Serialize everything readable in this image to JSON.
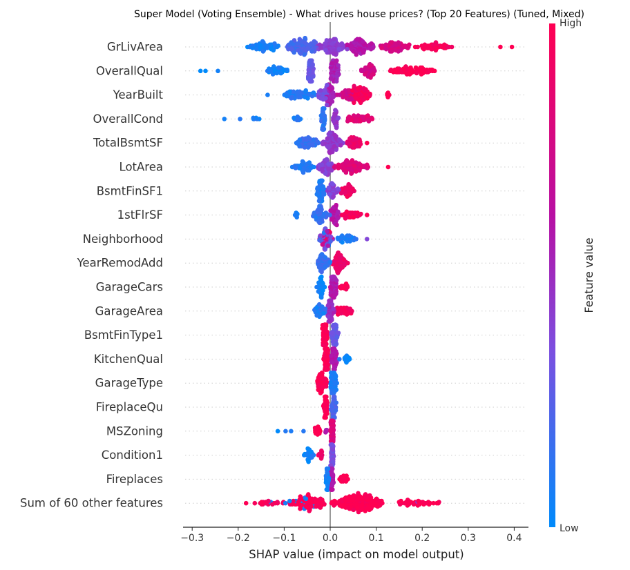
{
  "chart_data": {
    "type": "scatter",
    "subtype": "shap-beeswarm",
    "title": "Super Model (Voting Ensemble) - What drives house prices? (Top 20 Features) (Tuned, Mixed)",
    "xlabel": "SHAP value (impact on model output)",
    "xlim": [
      -0.32,
      0.43
    ],
    "xticks": [
      -0.3,
      -0.2,
      -0.1,
      0.0,
      0.1,
      0.2,
      0.3,
      0.4
    ],
    "xtick_labels": [
      "−0.3",
      "−0.2",
      "−0.1",
      "0.0",
      "0.1",
      "0.2",
      "0.3",
      "0.4"
    ],
    "grid": "dotted horizontal row guides",
    "colorbar": {
      "label": "Feature value",
      "high": "High",
      "low": "Low",
      "low_color": "#008afb",
      "mid_colors": [
        "#7b4fe0",
        "#b80fa3"
      ],
      "high_color": "#ff0052"
    },
    "segments_format": "[shap_min, shap_max, feature_value (0=low,1=high or [min,max] mixed), approx_point_count]",
    "features": [
      {
        "name": "GrLivArea",
        "segments": [
          [
            -0.19,
            -0.1,
            0.05,
            60
          ],
          [
            -0.1,
            -0.02,
            0.2,
            120
          ],
          [
            -0.03,
            0.04,
            0.42,
            100
          ],
          [
            0.03,
            0.1,
            0.6,
            90
          ],
          [
            0.1,
            0.18,
            0.78,
            70
          ],
          [
            0.18,
            0.27,
            0.95,
            50
          ],
          [
            0.37,
            0.37,
            1,
            1
          ],
          [
            0.395,
            0.395,
            1,
            1
          ]
        ]
      },
      {
        "name": "OverallQual",
        "segments": [
          [
            -0.282,
            -0.282,
            0,
            1
          ],
          [
            -0.271,
            -0.271,
            0,
            1
          ],
          [
            -0.244,
            -0.244,
            0,
            1
          ],
          [
            -0.142,
            -0.085,
            0.05,
            40
          ],
          [
            -0.05,
            -0.035,
            0.3,
            70
          ],
          [
            0.0,
            0.02,
            0.55,
            70
          ],
          [
            0.063,
            0.105,
            0.75,
            50
          ],
          [
            0.123,
            0.24,
            1,
            80
          ]
        ]
      },
      {
        "name": "YearBuilt",
        "segments": [
          [
            -0.136,
            -0.136,
            0.05,
            1
          ],
          [
            -0.11,
            -0.03,
            0.1,
            70
          ],
          [
            -0.03,
            0.0,
            0.35,
            40
          ],
          [
            -0.01,
            0.01,
            0.55,
            50
          ],
          [
            0.01,
            0.06,
            0.72,
            40
          ],
          [
            0.04,
            0.09,
            0.95,
            90
          ],
          [
            0.12,
            0.13,
            1,
            6
          ]
        ]
      },
      {
        "name": "OverallCond",
        "segments": [
          [
            -0.23,
            -0.23,
            0.05,
            1
          ],
          [
            -0.196,
            -0.196,
            0.05,
            1
          ],
          [
            -0.178,
            -0.145,
            0.05,
            6
          ],
          [
            -0.085,
            -0.06,
            0.1,
            10
          ],
          [
            -0.02,
            -0.01,
            0.12,
            50
          ],
          [
            0.005,
            0.02,
            0.45,
            25
          ],
          [
            0.03,
            0.095,
            0.85,
            50
          ]
        ]
      },
      {
        "name": "TotalBsmtSF",
        "segments": [
          [
            -0.08,
            -0.02,
            0.15,
            60
          ],
          [
            -0.02,
            0.03,
            0.45,
            90
          ],
          [
            0.03,
            0.07,
            0.88,
            50
          ],
          [
            0.08,
            0.08,
            1,
            1
          ]
        ]
      },
      {
        "name": "LotArea",
        "segments": [
          [
            -0.09,
            -0.03,
            0.1,
            50
          ],
          [
            -0.03,
            0.01,
            0.4,
            60
          ],
          [
            0.0,
            0.09,
            0.82,
            90
          ],
          [
            0.126,
            0.126,
            1,
            1
          ]
        ]
      },
      {
        "name": "BsmtFinSF1",
        "segments": [
          [
            -0.03,
            -0.01,
            0.08,
            60
          ],
          [
            -0.01,
            0.02,
            0.4,
            40
          ],
          [
            0.02,
            0.055,
            0.92,
            40
          ]
        ]
      },
      {
        "name": "1stFlrSF",
        "segments": [
          [
            -0.08,
            -0.065,
            0.05,
            6
          ],
          [
            -0.04,
            0.0,
            0.15,
            60
          ],
          [
            0.0,
            0.02,
            0.6,
            50
          ],
          [
            0.02,
            0.07,
            0.95,
            40
          ],
          [
            0.08,
            0.08,
            1,
            1
          ]
        ]
      },
      {
        "name": "Neighborhood",
        "segments": [
          [
            -0.03,
            0.01,
            [
              0,
              1
            ],
            80
          ],
          [
            0.01,
            0.07,
            0.08,
            30
          ],
          [
            0.08,
            0.08,
            0.4,
            1
          ]
        ]
      },
      {
        "name": "YearRemodAdd",
        "segments": [
          [
            -0.03,
            0.0,
            0.15,
            60
          ],
          [
            0.0,
            0.04,
            0.9,
            70
          ]
        ]
      },
      {
        "name": "GarageCars",
        "segments": [
          [
            -0.03,
            -0.01,
            0.03,
            40
          ],
          [
            0.0,
            0.015,
            0.58,
            60
          ],
          [
            0.02,
            0.04,
            1,
            15
          ]
        ]
      },
      {
        "name": "GarageArea",
        "segments": [
          [
            -0.035,
            -0.01,
            0.1,
            40
          ],
          [
            -0.01,
            0.01,
            0.5,
            60
          ],
          [
            0.01,
            0.05,
            0.95,
            40
          ]
        ]
      },
      {
        "name": "BsmtFinType1",
        "segments": [
          [
            -0.018,
            -0.005,
            1,
            50
          ],
          [
            0.0,
            0.02,
            0.3,
            50
          ]
        ]
      },
      {
        "name": "KitchenQual",
        "segments": [
          [
            -0.015,
            -0.003,
            1,
            60
          ],
          [
            0.0,
            0.015,
            0.6,
            50
          ],
          [
            0.02,
            0.02,
            0.1,
            1
          ],
          [
            0.03,
            0.045,
            0.05,
            15
          ]
        ]
      },
      {
        "name": "GarageType",
        "segments": [
          [
            -0.03,
            -0.005,
            1,
            60
          ],
          [
            0.0,
            0.015,
            0.08,
            60
          ]
        ]
      },
      {
        "name": "FireplaceQu",
        "segments": [
          [
            -0.015,
            -0.005,
            1,
            50
          ],
          [
            0.0,
            0.015,
            0.2,
            40
          ]
        ]
      },
      {
        "name": "MSZoning",
        "segments": [
          [
            -0.114,
            -0.114,
            0.05,
            1
          ],
          [
            -0.097,
            -0.097,
            0.05,
            1
          ],
          [
            -0.085,
            -0.085,
            0.05,
            1
          ],
          [
            -0.058,
            -0.058,
            0.05,
            1
          ],
          [
            -0.035,
            -0.02,
            1,
            20
          ],
          [
            -0.012,
            -0.005,
            0.55,
            5
          ],
          [
            0.0,
            0.008,
            0.8,
            70
          ]
        ]
      },
      {
        "name": "Condition1",
        "segments": [
          [
            -0.058,
            -0.035,
            0.05,
            25
          ],
          [
            -0.035,
            -0.01,
            0.9,
            10
          ],
          [
            0.0,
            0.008,
            0.35,
            70
          ]
        ]
      },
      {
        "name": "Fireplaces",
        "segments": [
          [
            -0.01,
            -0.002,
            0.05,
            60
          ],
          [
            0.0,
            0.008,
            0.6,
            50
          ],
          [
            0.02,
            0.043,
            1,
            20
          ]
        ]
      },
      {
        "name": "Sum of 60 other features",
        "segments": [
          [
            -0.19,
            -0.08,
            0.95,
            25
          ],
          [
            -0.19,
            0.04,
            0.08,
            12
          ],
          [
            -0.09,
            0.0,
            1,
            110
          ],
          [
            0.0,
            0.12,
            1,
            220
          ],
          [
            0.12,
            0.26,
            1,
            40
          ],
          [
            0.19,
            0.19,
            0.4,
            1
          ]
        ]
      }
    ]
  }
}
